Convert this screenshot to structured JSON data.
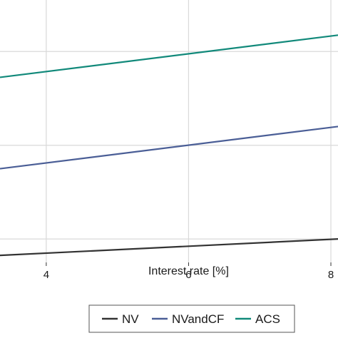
{
  "chart_data": {
    "type": "line",
    "xlabel": "Interest rate [%]",
    "ylabel": "",
    "title": "",
    "xlim": [
      3.35,
      8.1
    ],
    "ylim": [
      0.1,
      1.22
    ],
    "xticks": [
      4,
      6,
      8
    ],
    "xtick_labels": [
      "4",
      "6",
      "8"
    ],
    "ygrid": [
      0.2,
      0.6,
      1.0
    ],
    "grid": true,
    "legend": {
      "placement": "bottom-center",
      "frame": true
    },
    "series": [
      {
        "name": "NV",
        "color": "#333333",
        "x": [
          3.35,
          8.1
        ],
        "y": [
          0.13,
          0.2
        ]
      },
      {
        "name": "NVandCF",
        "color": "#4a5e96",
        "x": [
          3.35,
          8.1
        ],
        "y": [
          0.5,
          0.68
        ]
      },
      {
        "name": "ACS",
        "color": "#11897a",
        "x": [
          3.35,
          8.1
        ],
        "y": [
          0.89,
          1.07
        ]
      }
    ]
  }
}
